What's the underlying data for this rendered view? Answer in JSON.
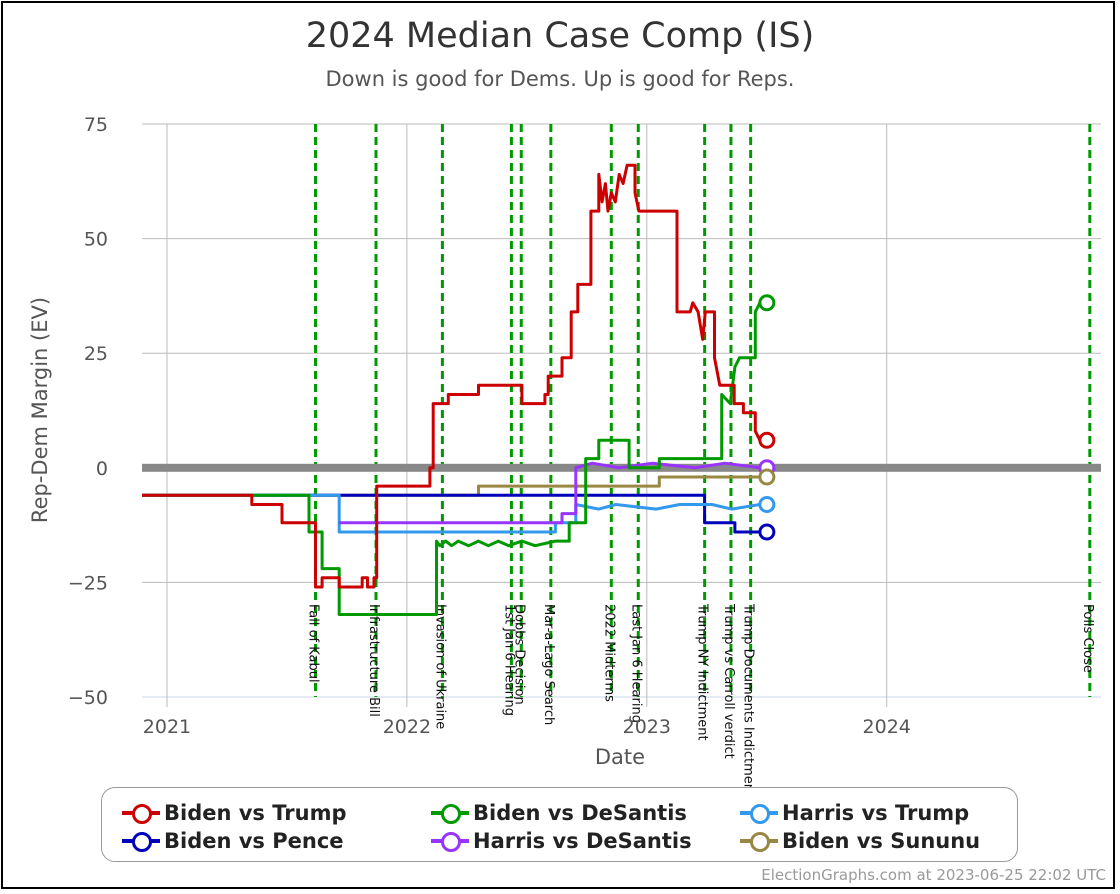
{
  "chart_data": {
    "type": "line",
    "title": "2024 Median Case Comp (IS)",
    "subtitle": "Down is good for Dems. Up is good for Reps.",
    "xlabel": "Date",
    "ylabel": "Rep-Dem Margin (EV)",
    "xlim": [
      "2020-11-24",
      "2024-11-22"
    ],
    "ylim": [
      -50,
      75
    ],
    "x_ticks": [
      "2021",
      "2022",
      "2023",
      "2024"
    ],
    "y_ticks": [
      "75",
      "50",
      "25",
      "0",
      "−25",
      "−50"
    ],
    "grid": true,
    "events": [
      {
        "label": "Fall of Kabul",
        "date": "2021-08-15"
      },
      {
        "label": "Infrastructure Bill",
        "date": "2021-11-15"
      },
      {
        "label": "Invasion of Ukraine",
        "date": "2022-02-24"
      },
      {
        "label": "1st Jan 6 Hearing",
        "date": "2022-06-09"
      },
      {
        "label": "Dobbs Decision",
        "date": "2022-06-24"
      },
      {
        "label": "Mar-a-Lago Search",
        "date": "2022-08-08"
      },
      {
        "label": "2022 Midterms",
        "date": "2022-11-08"
      },
      {
        "label": "Last Jan 6 Hearing",
        "date": "2022-12-19"
      },
      {
        "label": "Trump NY Indictment",
        "date": "2023-03-30"
      },
      {
        "label": "Trump vs Carroll verdict",
        "date": "2023-05-09"
      },
      {
        "label": "Trump Documents Indictment",
        "date": "2023-06-08"
      },
      {
        "label": "Polls Close",
        "date": "2024-11-05"
      }
    ],
    "series": [
      {
        "name": "Biden vs Trump",
        "color": "#cc0000",
        "last": 6,
        "points": [
          [
            "2020-11-24",
            -6
          ],
          [
            "2021-05-10",
            -6
          ],
          [
            "2021-05-10",
            -8
          ],
          [
            "2021-06-25",
            -8
          ],
          [
            "2021-06-25",
            -12
          ],
          [
            "2021-08-15",
            -12
          ],
          [
            "2021-08-15",
            -26
          ],
          [
            "2021-08-25",
            -26
          ],
          [
            "2021-08-25",
            -24
          ],
          [
            "2021-09-20",
            -24
          ],
          [
            "2021-09-20",
            -26
          ],
          [
            "2021-10-25",
            -26
          ],
          [
            "2021-10-25",
            -24
          ],
          [
            "2021-11-02",
            -24
          ],
          [
            "2021-11-02",
            -26
          ],
          [
            "2021-11-12",
            -26
          ],
          [
            "2021-11-12",
            -24
          ],
          [
            "2021-11-16",
            -24
          ],
          [
            "2021-11-16",
            -4
          ],
          [
            "2022-02-05",
            -4
          ],
          [
            "2022-02-05",
            0
          ],
          [
            "2022-02-10",
            0
          ],
          [
            "2022-02-10",
            14
          ],
          [
            "2022-03-05",
            14
          ],
          [
            "2022-03-05",
            16
          ],
          [
            "2022-04-20",
            16
          ],
          [
            "2022-04-20",
            18
          ],
          [
            "2022-06-25",
            18
          ],
          [
            "2022-06-25",
            14
          ],
          [
            "2022-07-30",
            14
          ],
          [
            "2022-07-30",
            16
          ],
          [
            "2022-08-04",
            16
          ],
          [
            "2022-08-04",
            20
          ],
          [
            "2022-08-25",
            20
          ],
          [
            "2022-08-25",
            24
          ],
          [
            "2022-09-08",
            24
          ],
          [
            "2022-09-08",
            34
          ],
          [
            "2022-09-18",
            34
          ],
          [
            "2022-09-18",
            40
          ],
          [
            "2022-10-08",
            40
          ],
          [
            "2022-10-08",
            56
          ],
          [
            "2022-10-20",
            56
          ],
          [
            "2022-10-20",
            64
          ],
          [
            "2022-10-25",
            58
          ],
          [
            "2022-10-30",
            62
          ],
          [
            "2022-11-03",
            56
          ],
          [
            "2022-11-08",
            60
          ],
          [
            "2022-11-14",
            58
          ],
          [
            "2022-11-20",
            64
          ],
          [
            "2022-11-26",
            62
          ],
          [
            "2022-12-02",
            66
          ],
          [
            "2022-12-14",
            66
          ],
          [
            "2022-12-14",
            60
          ],
          [
            "2022-12-20",
            56
          ],
          [
            "2023-02-16",
            56
          ],
          [
            "2023-02-16",
            34
          ],
          [
            "2023-03-08",
            34
          ],
          [
            "2023-03-12",
            36
          ],
          [
            "2023-03-20",
            34
          ],
          [
            "2023-03-27",
            28
          ],
          [
            "2023-03-31",
            34
          ],
          [
            "2023-04-14",
            34
          ],
          [
            "2023-04-14",
            24
          ],
          [
            "2023-04-22",
            18
          ],
          [
            "2023-05-14",
            18
          ],
          [
            "2023-05-14",
            14
          ],
          [
            "2023-05-28",
            14
          ],
          [
            "2023-05-28",
            12
          ],
          [
            "2023-06-15",
            12
          ],
          [
            "2023-06-15",
            8
          ],
          [
            "2023-06-22",
            6
          ]
        ]
      },
      {
        "name": "Biden vs DeSantis",
        "color": "#009900",
        "last": 36,
        "points": [
          [
            "2020-11-24",
            -6
          ],
          [
            "2021-08-05",
            -6
          ],
          [
            "2021-08-05",
            -14
          ],
          [
            "2021-08-25",
            -14
          ],
          [
            "2021-08-25",
            -22
          ],
          [
            "2021-09-20",
            -22
          ],
          [
            "2021-09-20",
            -32
          ],
          [
            "2022-02-15",
            -32
          ],
          [
            "2022-02-15",
            -16
          ],
          [
            "2022-02-20",
            -17
          ],
          [
            "2022-03-01",
            -16
          ],
          [
            "2022-03-10",
            -17
          ],
          [
            "2022-03-20",
            -16
          ],
          [
            "2022-04-05",
            -17
          ],
          [
            "2022-04-20",
            -16
          ],
          [
            "2022-05-05",
            -17
          ],
          [
            "2022-05-20",
            -16
          ],
          [
            "2022-06-05",
            -17
          ],
          [
            "2022-06-25",
            -16
          ],
          [
            "2022-07-15",
            -17
          ],
          [
            "2022-08-15",
            -16
          ],
          [
            "2022-09-05",
            -16
          ],
          [
            "2022-09-05",
            -12
          ],
          [
            "2022-09-30",
            -12
          ],
          [
            "2022-09-30",
            2
          ],
          [
            "2022-10-20",
            2
          ],
          [
            "2022-10-20",
            6
          ],
          [
            "2022-12-05",
            6
          ],
          [
            "2022-12-05",
            0
          ],
          [
            "2023-01-20",
            0
          ],
          [
            "2023-01-20",
            2
          ],
          [
            "2023-04-25",
            2
          ],
          [
            "2023-04-25",
            16
          ],
          [
            "2023-05-08",
            14
          ],
          [
            "2023-05-15",
            22
          ],
          [
            "2023-05-22",
            24
          ],
          [
            "2023-06-15",
            24
          ],
          [
            "2023-06-15",
            34
          ],
          [
            "2023-06-22",
            36
          ]
        ]
      },
      {
        "name": "Harris vs Trump",
        "color": "#3399ee",
        "last": -8,
        "points": [
          [
            "2020-11-24",
            -6
          ],
          [
            "2021-09-20",
            -6
          ],
          [
            "2021-09-20",
            -14
          ],
          [
            "2022-08-15",
            -14
          ],
          [
            "2022-08-15",
            -12
          ],
          [
            "2022-09-15",
            -12
          ],
          [
            "2022-09-15",
            -8
          ],
          [
            "2022-10-20",
            -9
          ],
          [
            "2022-11-15",
            -8
          ],
          [
            "2023-01-15",
            -9
          ],
          [
            "2023-02-20",
            -8
          ],
          [
            "2023-04-10",
            -8
          ],
          [
            "2023-05-10",
            -9
          ],
          [
            "2023-06-22",
            -8
          ]
        ]
      },
      {
        "name": "Biden vs Pence",
        "color": "#0000bb",
        "last": -14,
        "points": [
          [
            "2020-11-24",
            -6
          ],
          [
            "2023-03-30",
            -6
          ],
          [
            "2023-03-30",
            -12
          ],
          [
            "2023-05-15",
            -12
          ],
          [
            "2023-05-15",
            -14
          ],
          [
            "2023-06-22",
            -14
          ]
        ]
      },
      {
        "name": "Harris vs DeSantis",
        "color": "#9933ff",
        "last": 0,
        "points": [
          [
            "2021-09-20",
            -12
          ],
          [
            "2022-08-25",
            -12
          ],
          [
            "2022-08-25",
            -10
          ],
          [
            "2022-09-15",
            -10
          ],
          [
            "2022-09-15",
            0
          ],
          [
            "2022-10-10",
            1
          ],
          [
            "2022-11-20",
            0
          ],
          [
            "2023-01-10",
            1
          ],
          [
            "2023-03-15",
            0
          ],
          [
            "2023-04-30",
            1
          ],
          [
            "2023-06-22",
            0
          ]
        ]
      },
      {
        "name": "Biden vs Sununu",
        "color": "#998844",
        "last": -2,
        "points": [
          [
            "2020-11-24",
            -6
          ],
          [
            "2022-04-20",
            -6
          ],
          [
            "2022-04-20",
            -4
          ],
          [
            "2023-01-20",
            -4
          ],
          [
            "2023-01-20",
            -2
          ],
          [
            "2023-06-22",
            -2
          ]
        ]
      }
    ]
  },
  "legend": [
    {
      "label": "Biden vs Trump",
      "color": "#cc0000"
    },
    {
      "label": "Biden vs DeSantis",
      "color": "#009900"
    },
    {
      "label": "Harris vs Trump",
      "color": "#3399ee"
    },
    {
      "label": "Biden vs Pence",
      "color": "#0000bb"
    },
    {
      "label": "Harris vs DeSantis",
      "color": "#9933ff"
    },
    {
      "label": "Biden vs Sununu",
      "color": "#998844"
    }
  ],
  "credit": "ElectionGraphs.com at 2023-06-25 22:02 UTC"
}
